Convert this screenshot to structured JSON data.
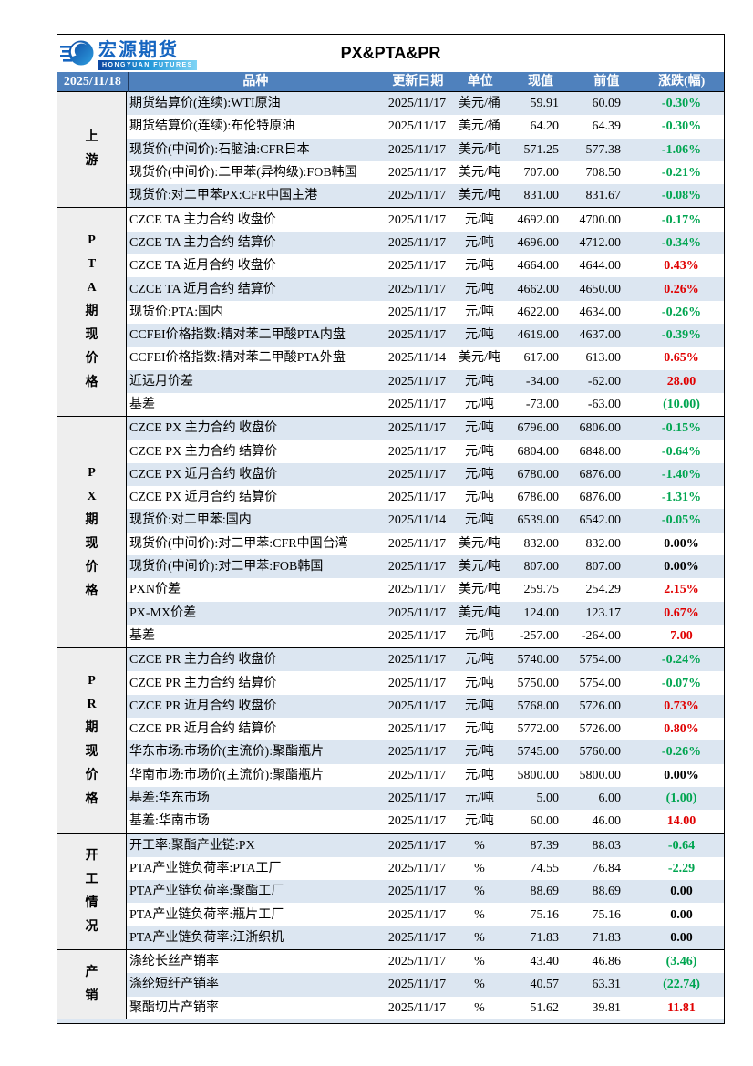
{
  "page": {
    "title": "PX&PTA&PR",
    "date": "2025/11/18"
  },
  "logo": {
    "cn": "宏源期货",
    "en": "HONGYUAN FUTURES"
  },
  "columns": {
    "variety": "品种",
    "update_date": "更新日期",
    "unit": "单位",
    "current": "现值",
    "previous": "前值",
    "change": "涨跌(幅)"
  },
  "colors": {
    "header_bg": "#4f81bd",
    "row_alt": "#dce6f1",
    "label_bg": "#eeeeee",
    "up": "#e00000",
    "down": "#00a550",
    "flat": "#000000"
  },
  "sections": [
    {
      "label": "上游",
      "label_chars": [
        "上",
        "游"
      ],
      "rows": [
        {
          "name": "期货结算价(连续):WTI原油",
          "date": "2025/11/17",
          "unit": "美元/桶",
          "current": "59.91",
          "previous": "60.09",
          "change": "-0.30%",
          "trend": "down"
        },
        {
          "name": "期货结算价(连续):布伦特原油",
          "date": "2025/11/17",
          "unit": "美元/桶",
          "current": "64.20",
          "previous": "64.39",
          "change": "-0.30%",
          "trend": "down"
        },
        {
          "name": "现货价(中间价):石脑油:CFR日本",
          "date": "2025/11/17",
          "unit": "美元/吨",
          "current": "571.25",
          "previous": "577.38",
          "change": "-1.06%",
          "trend": "down"
        },
        {
          "name": "现货价(中间价):二甲苯(异构级):FOB韩国",
          "date": "2025/11/17",
          "unit": "美元/吨",
          "current": "707.00",
          "previous": "708.50",
          "change": "-0.21%",
          "trend": "down"
        },
        {
          "name": "现货价:对二甲苯PX:CFR中国主港",
          "date": "2025/11/17",
          "unit": "美元/吨",
          "current": "831.00",
          "previous": "831.67",
          "change": "-0.08%",
          "trend": "down"
        }
      ]
    },
    {
      "label": "PTA期现价格",
      "label_chars": [
        "P",
        "T",
        "A",
        "期",
        "现",
        "价",
        "格"
      ],
      "rows": [
        {
          "name": "CZCE TA 主力合约 收盘价",
          "date": "2025/11/17",
          "unit": "元/吨",
          "current": "4692.00",
          "previous": "4700.00",
          "change": "-0.17%",
          "trend": "down"
        },
        {
          "name": "CZCE TA 主力合约 结算价",
          "date": "2025/11/17",
          "unit": "元/吨",
          "current": "4696.00",
          "previous": "4712.00",
          "change": "-0.34%",
          "trend": "down"
        },
        {
          "name": "CZCE TA 近月合约 收盘价",
          "date": "2025/11/17",
          "unit": "元/吨",
          "current": "4664.00",
          "previous": "4644.00",
          "change": "0.43%",
          "trend": "up"
        },
        {
          "name": "CZCE TA 近月合约 结算价",
          "date": "2025/11/17",
          "unit": "元/吨",
          "current": "4662.00",
          "previous": "4650.00",
          "change": "0.26%",
          "trend": "up"
        },
        {
          "name": "现货价:PTA:国内",
          "date": "2025/11/17",
          "unit": "元/吨",
          "current": "4622.00",
          "previous": "4634.00",
          "change": "-0.26%",
          "trend": "down"
        },
        {
          "name": "CCFEI价格指数:精对苯二甲酸PTA内盘",
          "date": "2025/11/17",
          "unit": "元/吨",
          "current": "4619.00",
          "previous": "4637.00",
          "change": "-0.39%",
          "trend": "down"
        },
        {
          "name": "CCFEI价格指数:精对苯二甲酸PTA外盘",
          "date": "2025/11/14",
          "unit": "美元/吨",
          "current": "617.00",
          "previous": "613.00",
          "change": "0.65%",
          "trend": "up"
        },
        {
          "name": "近远月价差",
          "date": "2025/11/17",
          "unit": "元/吨",
          "current": "-34.00",
          "previous": "-62.00",
          "change": "28.00",
          "trend": "up"
        },
        {
          "name": "基差",
          "date": "2025/11/17",
          "unit": "元/吨",
          "current": "-73.00",
          "previous": "-63.00",
          "change": "(10.00)",
          "trend": "down"
        }
      ]
    },
    {
      "label": "PX期现价格",
      "label_chars": [
        "P",
        "X",
        "期",
        "现",
        "价",
        "格"
      ],
      "rows": [
        {
          "name": "CZCE PX 主力合约 收盘价",
          "date": "2025/11/17",
          "unit": "元/吨",
          "current": "6796.00",
          "previous": "6806.00",
          "change": "-0.15%",
          "trend": "down"
        },
        {
          "name": "CZCE PX 主力合约 结算价",
          "date": "2025/11/17",
          "unit": "元/吨",
          "current": "6804.00",
          "previous": "6848.00",
          "change": "-0.64%",
          "trend": "down"
        },
        {
          "name": "CZCE PX 近月合约 收盘价",
          "date": "2025/11/17",
          "unit": "元/吨",
          "current": "6780.00",
          "previous": "6876.00",
          "change": "-1.40%",
          "trend": "down"
        },
        {
          "name": "CZCE PX 近月合约 结算价",
          "date": "2025/11/17",
          "unit": "元/吨",
          "current": "6786.00",
          "previous": "6876.00",
          "change": "-1.31%",
          "trend": "down"
        },
        {
          "name": "现货价:对二甲苯:国内",
          "date": "2025/11/14",
          "unit": "元/吨",
          "current": "6539.00",
          "previous": "6542.00",
          "change": "-0.05%",
          "trend": "down"
        },
        {
          "name": "现货价(中间价):对二甲苯:CFR中国台湾",
          "date": "2025/11/17",
          "unit": "美元/吨",
          "current": "832.00",
          "previous": "832.00",
          "change": "0.00%",
          "trend": "flat"
        },
        {
          "name": "现货价(中间价):对二甲苯:FOB韩国",
          "date": "2025/11/17",
          "unit": "美元/吨",
          "current": "807.00",
          "previous": "807.00",
          "change": "0.00%",
          "trend": "flat"
        },
        {
          "name": "PXN价差",
          "date": "2025/11/17",
          "unit": "美元/吨",
          "current": "259.75",
          "previous": "254.29",
          "change": "2.15%",
          "trend": "up"
        },
        {
          "name": "PX-MX价差",
          "date": "2025/11/17",
          "unit": "美元/吨",
          "current": "124.00",
          "previous": "123.17",
          "change": "0.67%",
          "trend": "up"
        },
        {
          "name": "基差",
          "date": "2025/11/17",
          "unit": "元/吨",
          "current": "-257.00",
          "previous": "-264.00",
          "change": "7.00",
          "trend": "up"
        }
      ]
    },
    {
      "label": "PR期现价格",
      "label_chars": [
        "P",
        "R",
        "期",
        "现",
        "价",
        "格"
      ],
      "rows": [
        {
          "name": "CZCE PR 主力合约 收盘价",
          "date": "2025/11/17",
          "unit": "元/吨",
          "current": "5740.00",
          "previous": "5754.00",
          "change": "-0.24%",
          "trend": "down"
        },
        {
          "name": "CZCE PR 主力合约 结算价",
          "date": "2025/11/17",
          "unit": "元/吨",
          "current": "5750.00",
          "previous": "5754.00",
          "change": "-0.07%",
          "trend": "down"
        },
        {
          "name": "CZCE PR 近月合约 收盘价",
          "date": "2025/11/17",
          "unit": "元/吨",
          "current": "5768.00",
          "previous": "5726.00",
          "change": "0.73%",
          "trend": "up"
        },
        {
          "name": "CZCE PR 近月合约 结算价",
          "date": "2025/11/17",
          "unit": "元/吨",
          "current": "5772.00",
          "previous": "5726.00",
          "change": "0.80%",
          "trend": "up"
        },
        {
          "name": "华东市场:市场价(主流价):聚酯瓶片",
          "date": "2025/11/17",
          "unit": "元/吨",
          "current": "5745.00",
          "previous": "5760.00",
          "change": "-0.26%",
          "trend": "down"
        },
        {
          "name": "华南市场:市场价(主流价):聚酯瓶片",
          "date": "2025/11/17",
          "unit": "元/吨",
          "current": "5800.00",
          "previous": "5800.00",
          "change": "0.00%",
          "trend": "flat"
        },
        {
          "name": "基差:华东市场",
          "date": "2025/11/17",
          "unit": "元/吨",
          "current": "5.00",
          "previous": "6.00",
          "change": "(1.00)",
          "trend": "down"
        },
        {
          "name": "基差:华南市场",
          "date": "2025/11/17",
          "unit": "元/吨",
          "current": "60.00",
          "previous": "46.00",
          "change": "14.00",
          "trend": "up"
        }
      ]
    },
    {
      "label": "开工情况",
      "label_chars": [
        "开",
        "工",
        "情",
        "况"
      ],
      "rows": [
        {
          "name": "开工率:聚酯产业链:PX",
          "date": "2025/11/17",
          "unit": "%",
          "current": "87.39",
          "previous": "88.03",
          "change": "-0.64",
          "trend": "down"
        },
        {
          "name": "PTA产业链负荷率:PTA工厂",
          "date": "2025/11/17",
          "unit": "%",
          "current": "74.55",
          "previous": "76.84",
          "change": "-2.29",
          "trend": "down"
        },
        {
          "name": "PTA产业链负荷率:聚酯工厂",
          "date": "2025/11/17",
          "unit": "%",
          "current": "88.69",
          "previous": "88.69",
          "change": "0.00",
          "trend": "flat"
        },
        {
          "name": "PTA产业链负荷率:瓶片工厂",
          "date": "2025/11/17",
          "unit": "%",
          "current": "75.16",
          "previous": "75.16",
          "change": "0.00",
          "trend": "flat"
        },
        {
          "name": "PTA产业链负荷率:江浙织机",
          "date": "2025/11/17",
          "unit": "%",
          "current": "71.83",
          "previous": "71.83",
          "change": "0.00",
          "trend": "flat"
        }
      ]
    },
    {
      "label": "产销",
      "label_chars": [
        "产",
        "销"
      ],
      "rows": [
        {
          "name": "涤纶长丝产销率",
          "date": "2025/11/17",
          "unit": "%",
          "current": "43.40",
          "previous": "46.86",
          "change": "(3.46)",
          "trend": "down"
        },
        {
          "name": "涤纶短纤产销率",
          "date": "2025/11/17",
          "unit": "%",
          "current": "40.57",
          "previous": "63.31",
          "change": "(22.74)",
          "trend": "down"
        },
        {
          "name": "聚酯切片产销率",
          "date": "2025/11/17",
          "unit": "%",
          "current": "51.62",
          "previous": "39.81",
          "change": "11.81",
          "trend": "up"
        }
      ]
    }
  ]
}
